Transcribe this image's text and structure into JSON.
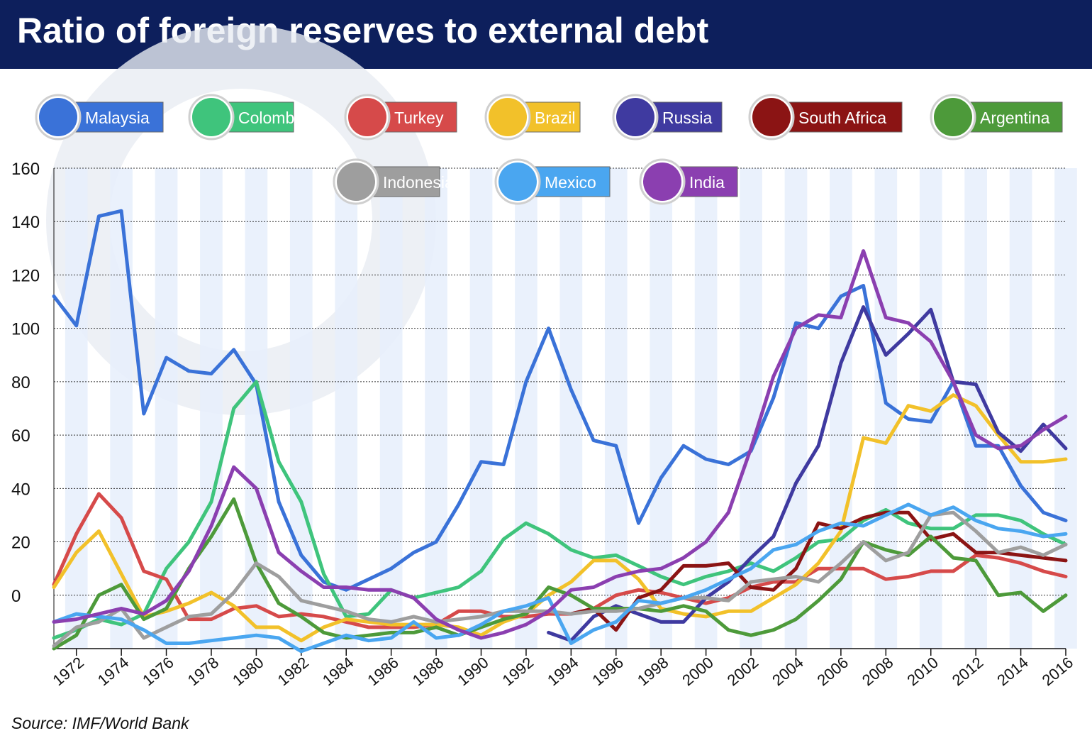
{
  "title": "Ratio of foreign reserves to external debt",
  "source": "Source: IMF/World Bank",
  "chart_data": {
    "type": "line",
    "x": [
      1971,
      1972,
      1973,
      1974,
      1975,
      1976,
      1977,
      1978,
      1979,
      1980,
      1981,
      1982,
      1983,
      1984,
      1985,
      1986,
      1987,
      1988,
      1989,
      1990,
      1991,
      1992,
      1993,
      1994,
      1995,
      1996,
      1997,
      1998,
      1999,
      2000,
      2001,
      2002,
      2003,
      2004,
      2005,
      2006,
      2007,
      2008,
      2009,
      2010,
      2011,
      2012,
      2013,
      2014,
      2015,
      2016
    ],
    "xticks": [
      "1972",
      "1974",
      "1976",
      "1978",
      "1980",
      "1982",
      "1984",
      "1986",
      "1988",
      "1990",
      "1992",
      "1994",
      "1996",
      "1998",
      "2000",
      "2002",
      "2004",
      "2006",
      "2008",
      "2010",
      "2012",
      "2014",
      "2016"
    ],
    "yticks": [
      "0",
      "20",
      "40",
      "60",
      "80",
      "100",
      "120",
      "140",
      "160"
    ],
    "ylim": [
      -20,
      160
    ],
    "grid": true,
    "series": [
      {
        "name": "Malaysia",
        "color": "#3a72d8",
        "values": [
          112,
          101,
          142,
          144,
          68,
          89,
          84,
          83,
          92,
          79,
          35,
          15,
          5,
          2,
          6,
          10,
          16,
          20,
          34,
          50,
          49,
          80,
          100,
          77,
          58,
          56,
          27,
          44,
          56,
          51,
          49,
          54,
          74,
          102,
          100,
          112,
          116,
          72,
          66,
          65,
          80,
          56,
          56,
          41,
          31,
          28
        ]
      },
      {
        "name": "Colombia",
        "color": "#3fc47c",
        "values": [
          -16,
          -13,
          -9,
          -11,
          -7,
          10,
          20,
          35,
          70,
          80,
          50,
          35,
          8,
          -8,
          -7,
          2,
          -1,
          1,
          3,
          9,
          21,
          27,
          23,
          17,
          14,
          15,
          11,
          7,
          4,
          7,
          9,
          12,
          9,
          14,
          20,
          21,
          28,
          32,
          27,
          25,
          25,
          30,
          30,
          28,
          23,
          19
        ]
      },
      {
        "name": "Turkey",
        "color": "#d64a4a",
        "values": [
          4,
          23,
          38,
          29,
          9,
          6,
          -9,
          -9,
          -5,
          -4,
          -8,
          -7,
          -8,
          -10,
          -12,
          -12,
          -12,
          -11,
          -6,
          -6,
          -8,
          -8,
          -7,
          -7,
          -5,
          0,
          2,
          1,
          -1,
          -3,
          -1,
          3,
          5,
          5,
          10,
          10,
          10,
          6,
          7,
          9,
          9,
          15,
          14,
          12,
          9,
          7
        ]
      },
      {
        "name": "Brazil",
        "color": "#f2c12a",
        "values": [
          3,
          16,
          24,
          8,
          -8,
          -6,
          -3,
          1,
          -4,
          -12,
          -12,
          -17,
          -12,
          -9,
          -10,
          -11,
          -11,
          -11,
          -12,
          -15,
          -10,
          -7,
          0,
          5,
          13,
          13,
          6,
          -5,
          -7,
          -8,
          -6,
          -6,
          -1,
          4,
          12,
          24,
          59,
          57,
          71,
          69,
          75,
          71,
          60,
          50,
          50,
          51
        ]
      },
      {
        "name": "Russia",
        "color": "#3f3aa0",
        "values": [
          null,
          null,
          null,
          null,
          null,
          null,
          null,
          null,
          null,
          null,
          null,
          null,
          null,
          null,
          null,
          null,
          null,
          null,
          null,
          null,
          null,
          null,
          -14,
          -17,
          -8,
          -4,
          -7,
          -10,
          -10,
          -1,
          5,
          14,
          22,
          42,
          56,
          87,
          108,
          90,
          98,
          107,
          80,
          79,
          61,
          54,
          64,
          55
        ]
      },
      {
        "name": "South Africa",
        "color": "#8b1414",
        "values": [
          null,
          null,
          null,
          null,
          null,
          null,
          null,
          null,
          null,
          null,
          null,
          null,
          null,
          null,
          null,
          null,
          null,
          null,
          null,
          null,
          null,
          null,
          null,
          -7,
          -5,
          -13,
          -1,
          2,
          11,
          11,
          12,
          3,
          2,
          10,
          27,
          25,
          29,
          31,
          31,
          21,
          23,
          16,
          16,
          15,
          14,
          13
        ]
      },
      {
        "name": "Argentina",
        "color": "#4d9a3a",
        "values": [
          -20,
          -15,
          0,
          4,
          -9,
          -5,
          10,
          22,
          36,
          12,
          -3,
          -8,
          -14,
          -16,
          -15,
          -14,
          -14,
          -12,
          -15,
          -12,
          -9,
          -7,
          3,
          0,
          -5,
          -5,
          -5,
          -6,
          -4,
          -6,
          -13,
          -15,
          -13,
          -9,
          -2,
          6,
          20,
          17,
          15,
          22,
          14,
          13,
          0,
          1,
          -6,
          0
        ]
      },
      {
        "name": "Indonesia",
        "color": "#9e9e9e",
        "values": [
          -19,
          -12,
          -10,
          -5,
          -16,
          -12,
          -8,
          -7,
          1,
          12,
          7,
          -2,
          -4,
          -6,
          -9,
          -10,
          -8,
          -10,
          -9,
          -8,
          -6,
          -6,
          -6,
          -7,
          -6,
          -6,
          -5,
          -3,
          -1,
          -1,
          -2,
          5,
          6,
          7,
          5,
          12,
          20,
          13,
          16,
          30,
          31,
          24,
          16,
          18,
          15,
          19
        ]
      },
      {
        "name": "Mexico",
        "color": "#4aa6f0",
        "values": [
          -10,
          -7,
          -8,
          -9,
          -13,
          -18,
          -18,
          -17,
          -16,
          -15,
          -16,
          -21,
          -18,
          -15,
          -17,
          -16,
          -10,
          -16,
          -15,
          -11,
          -6,
          -4,
          -1,
          -18,
          -13,
          -10,
          -2,
          -3,
          -1,
          2,
          6,
          10,
          17,
          19,
          24,
          27,
          26,
          30,
          34,
          30,
          33,
          28,
          25,
          24,
          22,
          23
        ]
      },
      {
        "name": "India",
        "color": "#8b3fb0",
        "values": [
          -10,
          -9,
          -7,
          -5,
          -7,
          -2,
          9,
          26,
          48,
          40,
          16,
          9,
          3,
          3,
          2,
          2,
          -1,
          -9,
          -13,
          -16,
          -14,
          -11,
          -6,
          2,
          3,
          7,
          9,
          10,
          14,
          20,
          31,
          55,
          82,
          100,
          105,
          104,
          129,
          104,
          102,
          95,
          80,
          60,
          55,
          56,
          62,
          67
        ]
      }
    ]
  },
  "legend": [
    {
      "name": "Malaysia",
      "color": "#3a72d8",
      "flag": "malaysia-flag-icon"
    },
    {
      "name": "Colombia",
      "color": "#3fc47c",
      "flag": "colombia-flag-icon"
    },
    {
      "name": "Turkey",
      "color": "#d64a4a",
      "flag": "turkey-flag-icon"
    },
    {
      "name": "Brazil",
      "color": "#f2c12a",
      "flag": "brazil-flag-icon"
    },
    {
      "name": "Russia",
      "color": "#3f3aa0",
      "flag": "russia-flag-icon"
    },
    {
      "name": "South Africa",
      "color": "#8b1414",
      "flag": "south-africa-flag-icon"
    },
    {
      "name": "Argentina",
      "color": "#4d9a3a",
      "flag": "argentina-flag-icon"
    },
    {
      "name": "Indonesia",
      "color": "#9e9e9e",
      "flag": "indonesia-flag-icon"
    },
    {
      "name": "Mexico",
      "color": "#4aa6f0",
      "flag": "mexico-flag-icon"
    },
    {
      "name": "India",
      "color": "#8b3fb0",
      "flag": "india-flag-icon"
    }
  ]
}
